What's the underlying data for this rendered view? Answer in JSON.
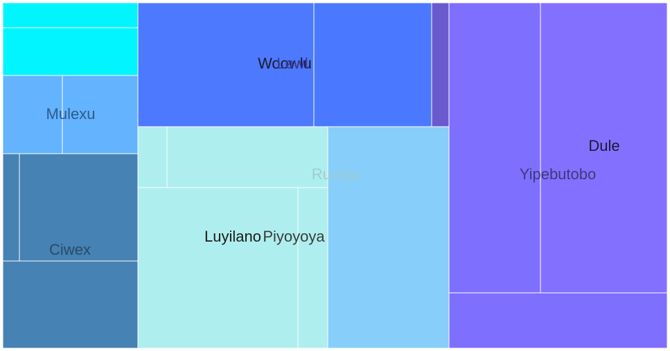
{
  "chart_data": {
    "type": "treemap",
    "title": "",
    "groups": [
      {
        "name": "Mulexu",
        "color": "#63b3ff",
        "items": [
          {
            "value": 7.0,
            "color": "#00f5ff"
          },
          {
            "value": 14.0,
            "color": "#00f5ff"
          },
          {
            "value": 10.0,
            "color": "#63b3ff"
          },
          {
            "value": 12.5,
            "color": "#63b3ff"
          }
        ]
      },
      {
        "name": "Ciwex",
        "color": "#4682b4",
        "items": [
          {
            "value": 4.0,
            "color": "#4682b4"
          },
          {
            "value": 17.0,
            "color": "#4682b4"
          },
          {
            "value": 24.5,
            "color": "#4682b4"
          }
        ]
      },
      {
        "name": "Woowlu",
        "color": "#4d79ff",
        "items": [
          {
            "value": 45.5,
            "color": "#4d79ff"
          }
        ]
      },
      {
        "name": "Lewl",
        "color": "#4a79ff",
        "items": [
          {
            "value": 30.5,
            "color": "#4a79ff"
          },
          {
            "value": 4.5,
            "color": "#6a5acd"
          }
        ]
      },
      {
        "name": "Luyilano",
        "color": "#afeeee",
        "items": [
          {
            "value": 7.5,
            "color": "#afeeee"
          },
          {
            "value": 23.5,
            "color": "#afeeee"
          },
          {
            "value": 46.0,
            "color": "#afeeee"
          }
        ]
      },
      {
        "name": "Piyoyoya",
        "color": "#afeeee",
        "items": [
          {
            "value": 9.0,
            "color": "#afeeee"
          }
        ]
      },
      {
        "name": "Ruciqu",
        "color": "#87cefa",
        "items": [
          {
            "value": 56.0,
            "color": "#87cefa"
          }
        ]
      },
      {
        "name": "Yipebutobo",
        "color": "#7f6fff",
        "items": [
          {
            "value": 53.5,
            "color": "#7f6fff"
          },
          {
            "value": 40.5,
            "color": "#7f6fff"
          }
        ]
      },
      {
        "name": "Dule",
        "color": "#8470ff",
        "items": [
          {
            "value": 40.5,
            "color": "#8470ff"
          }
        ]
      }
    ],
    "label_colors": {
      "Mulexu": "#2f5a85",
      "Ciwex": "#2a4a66",
      "Woowlu": "#1a1a2e",
      "Lewl": "#3a3a9a",
      "Luyilano": "#1a1a1a",
      "Piyoyoya": "#3a3a3a",
      "Ruciqu": "#9fcdd0",
      "Yipebutobo": "#3e3a7a",
      "Dule": "#1a1a33"
    }
  }
}
